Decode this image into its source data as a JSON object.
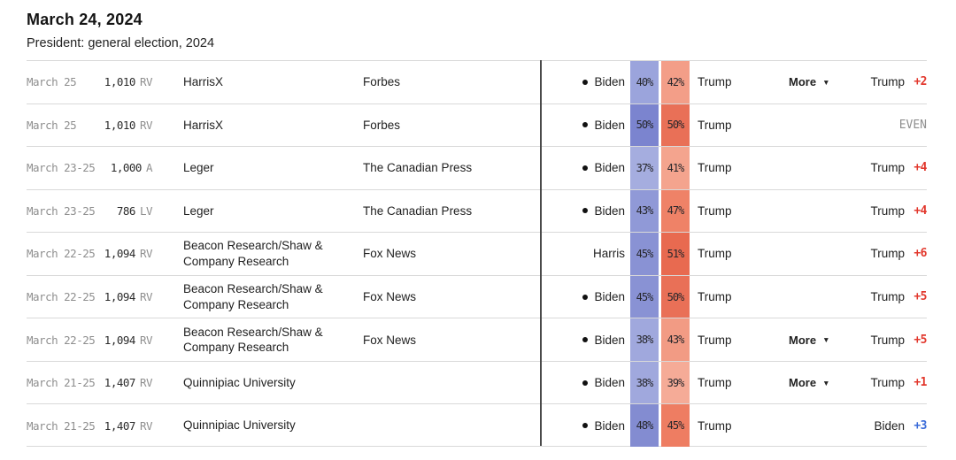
{
  "header": {
    "date": "March 24, 2024",
    "subtitle": "President: general election, 2024"
  },
  "labels": {
    "more": "More",
    "even_text": "EVEN"
  },
  "colors": {
    "trump_margin_red": "#e2382d",
    "biden_margin_blue": "#3a6bd9",
    "even_gray": "#8f8f8f",
    "divider": "#4a4a4a",
    "row_border": "#d9d9d9"
  },
  "rows": [
    {
      "date": "March 25",
      "sample": "1,010",
      "sample_type": "RV",
      "pollster": "HarrisX",
      "sponsor": "Forbes",
      "dem_candidate": "Biden",
      "dem_dot": true,
      "dem_pct": "40%",
      "dem_color": "#9ba4dc",
      "rep_pct": "42%",
      "rep_color": "#f39e88",
      "rep_candidate": "Trump",
      "more": true,
      "leader": "Trump",
      "margin": "+2",
      "margin_color": "#e2382d"
    },
    {
      "date": "March 25",
      "sample": "1,010",
      "sample_type": "RV",
      "pollster": "HarrisX",
      "sponsor": "Forbes",
      "dem_candidate": "Biden",
      "dem_dot": true,
      "dem_pct": "50%",
      "dem_color": "#7b84cf",
      "rep_pct": "50%",
      "rep_color": "#e97057",
      "rep_candidate": "Trump",
      "more": false,
      "leader": "",
      "margin": "EVEN",
      "margin_color": "#8f8f8f"
    },
    {
      "date": "March 23-25",
      "sample": "1,000",
      "sample_type": "A",
      "pollster": "Leger",
      "sponsor": "The Canadian Press",
      "dem_candidate": "Biden",
      "dem_dot": true,
      "dem_pct": "37%",
      "dem_color": "#a5addf",
      "rep_pct": "41%",
      "rep_color": "#f4a48e",
      "rep_candidate": "Trump",
      "more": false,
      "leader": "Trump",
      "margin": "+4",
      "margin_color": "#e2382d"
    },
    {
      "date": "March 23-25",
      "sample": "786",
      "sample_type": "LV",
      "pollster": "Leger",
      "sponsor": "The Canadian Press",
      "dem_candidate": "Biden",
      "dem_dot": true,
      "dem_pct": "43%",
      "dem_color": "#9099d7",
      "rep_pct": "47%",
      "rep_color": "#ef8267",
      "rep_candidate": "Trump",
      "more": false,
      "leader": "Trump",
      "margin": "+4",
      "margin_color": "#e2382d"
    },
    {
      "date": "March 22-25",
      "sample": "1,094",
      "sample_type": "RV",
      "pollster": "Beacon Research/Shaw & Company Research",
      "sponsor": "Fox News",
      "dem_candidate": "Harris",
      "dem_dot": false,
      "dem_pct": "45%",
      "dem_color": "#8992d4",
      "rep_pct": "51%",
      "rep_color": "#e86a50",
      "rep_candidate": "Trump",
      "more": false,
      "leader": "Trump",
      "margin": "+6",
      "margin_color": "#e2382d"
    },
    {
      "date": "March 22-25",
      "sample": "1,094",
      "sample_type": "RV",
      "pollster": "Beacon Research/Shaw & Company Research",
      "sponsor": "Fox News",
      "dem_candidate": "Biden",
      "dem_dot": true,
      "dem_pct": "45%",
      "dem_color": "#8992d4",
      "rep_pct": "50%",
      "rep_color": "#e97057",
      "rep_candidate": "Trump",
      "more": false,
      "leader": "Trump",
      "margin": "+5",
      "margin_color": "#e2382d"
    },
    {
      "date": "March 22-25",
      "sample": "1,094",
      "sample_type": "RV",
      "pollster": "Beacon Research/Shaw & Company Research",
      "sponsor": "Fox News",
      "dem_candidate": "Biden",
      "dem_dot": true,
      "dem_pct": "38%",
      "dem_color": "#a0a8dd",
      "rep_pct": "43%",
      "rep_color": "#f29b84",
      "rep_candidate": "Trump",
      "more": true,
      "leader": "Trump",
      "margin": "+5",
      "margin_color": "#e2382d"
    },
    {
      "date": "March 21-25",
      "sample": "1,407",
      "sample_type": "RV",
      "pollster": "Quinnipiac University",
      "sponsor": "",
      "dem_candidate": "Biden",
      "dem_dot": true,
      "dem_pct": "38%",
      "dem_color": "#a0a8dd",
      "rep_pct": "39%",
      "rep_color": "#f5ab97",
      "rep_candidate": "Trump",
      "more": true,
      "leader": "Trump",
      "margin": "+1",
      "margin_color": "#e2382d"
    },
    {
      "date": "March 21-25",
      "sample": "1,407",
      "sample_type": "RV",
      "pollster": "Quinnipiac University",
      "sponsor": "",
      "dem_candidate": "Biden",
      "dem_dot": true,
      "dem_pct": "48%",
      "dem_color": "#838cd1",
      "rep_pct": "45%",
      "rep_color": "#ee7d62",
      "rep_candidate": "Trump",
      "more": false,
      "leader": "Biden",
      "margin": "+3",
      "margin_color": "#3a6bd9"
    }
  ]
}
